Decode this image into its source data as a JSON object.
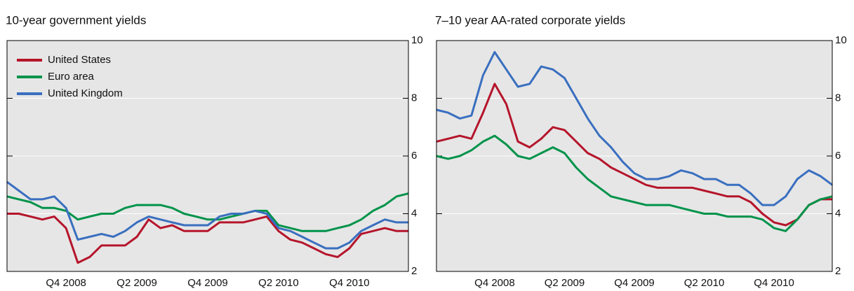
{
  "chart_data": [
    {
      "type": "line",
      "title": "10-year government yields",
      "categories": [
        null,
        null,
        null,
        null,
        null,
        "Q4 2008",
        null,
        null,
        null,
        null,
        null,
        "Q2 2009",
        null,
        null,
        null,
        null,
        null,
        "Q4 2009",
        null,
        null,
        null,
        null,
        null,
        "Q2 2010",
        null,
        null,
        null,
        null,
        null,
        "Q4 2010",
        null,
        null,
        null,
        null,
        null
      ],
      "ylim": [
        2,
        10
      ],
      "yticks": [
        2,
        4,
        6,
        8,
        10
      ],
      "grid": true,
      "legend": "upper left",
      "series": [
        {
          "name": "United States",
          "color": "#b5152b",
          "values": [
            4.0,
            4.0,
            3.9,
            3.8,
            3.9,
            3.5,
            2.3,
            2.5,
            2.9,
            2.9,
            2.9,
            3.2,
            3.8,
            3.5,
            3.6,
            3.4,
            3.4,
            3.4,
            3.7,
            3.7,
            3.7,
            3.8,
            3.9,
            3.4,
            3.1,
            3.0,
            2.8,
            2.6,
            2.5,
            2.8,
            3.3,
            3.4,
            3.5,
            3.4,
            3.4
          ]
        },
        {
          "name": "Euro area",
          "color": "#00934a",
          "values": [
            4.6,
            4.5,
            4.4,
            4.2,
            4.2,
            4.1,
            3.8,
            3.9,
            4.0,
            4.0,
            4.2,
            4.3,
            4.3,
            4.3,
            4.2,
            4.0,
            3.9,
            3.8,
            3.8,
            3.9,
            4.0,
            4.1,
            4.1,
            3.6,
            3.5,
            3.4,
            3.4,
            3.4,
            3.5,
            3.6,
            3.8,
            4.1,
            4.3,
            4.6,
            4.7
          ]
        },
        {
          "name": "United Kingdom",
          "color": "#3a6fbf",
          "values": [
            5.1,
            4.8,
            4.5,
            4.5,
            4.6,
            4.2,
            3.1,
            3.2,
            3.3,
            3.2,
            3.4,
            3.7,
            3.9,
            3.8,
            3.7,
            3.6,
            3.6,
            3.6,
            3.9,
            4.0,
            4.0,
            4.1,
            4.0,
            3.5,
            3.4,
            3.2,
            3.0,
            2.8,
            2.8,
            3.0,
            3.4,
            3.6,
            3.8,
            3.7,
            3.7
          ]
        }
      ]
    },
    {
      "type": "line",
      "title": "7–10 year AA-rated corporate yields",
      "categories": [
        null,
        null,
        null,
        null,
        null,
        "Q4 2008",
        null,
        null,
        null,
        null,
        null,
        "Q2 2009",
        null,
        null,
        null,
        null,
        null,
        "Q4 2009",
        null,
        null,
        null,
        null,
        null,
        "Q2 2010",
        null,
        null,
        null,
        null,
        null,
        "Q4 2010",
        null,
        null,
        null,
        null,
        null
      ],
      "ylim": [
        2,
        10
      ],
      "yticks": [
        2,
        4,
        6,
        8,
        10
      ],
      "grid": true,
      "series": [
        {
          "color": "#b5152b",
          "values": [
            6.5,
            6.6,
            6.7,
            6.6,
            7.5,
            8.5,
            7.8,
            6.5,
            6.3,
            6.6,
            7.0,
            6.9,
            6.5,
            6.1,
            5.9,
            5.6,
            5.4,
            5.2,
            5.0,
            4.9,
            4.9,
            4.9,
            4.9,
            4.8,
            4.7,
            4.6,
            4.6,
            4.4,
            4.0,
            3.7,
            3.6,
            3.8,
            4.3,
            4.5,
            4.5
          ]
        },
        {
          "color": "#00934a",
          "values": [
            6.0,
            5.9,
            6.0,
            6.2,
            6.5,
            6.7,
            6.4,
            6.0,
            5.9,
            6.1,
            6.3,
            6.1,
            5.6,
            5.2,
            4.9,
            4.6,
            4.5,
            4.4,
            4.3,
            4.3,
            4.3,
            4.2,
            4.1,
            4.0,
            4.0,
            3.9,
            3.9,
            3.9,
            3.8,
            3.5,
            3.4,
            3.8,
            4.3,
            4.5,
            4.6
          ]
        },
        {
          "color": "#3a6fbf",
          "values": [
            7.6,
            7.5,
            7.3,
            7.4,
            8.8,
            9.6,
            9.0,
            8.4,
            8.5,
            9.1,
            9.0,
            8.7,
            8.0,
            7.3,
            6.7,
            6.3,
            5.8,
            5.4,
            5.2,
            5.2,
            5.3,
            5.5,
            5.4,
            5.2,
            5.2,
            5.0,
            5.0,
            4.7,
            4.3,
            4.3,
            4.6,
            5.2,
            5.5,
            5.3,
            5.0
          ]
        }
      ]
    }
  ]
}
